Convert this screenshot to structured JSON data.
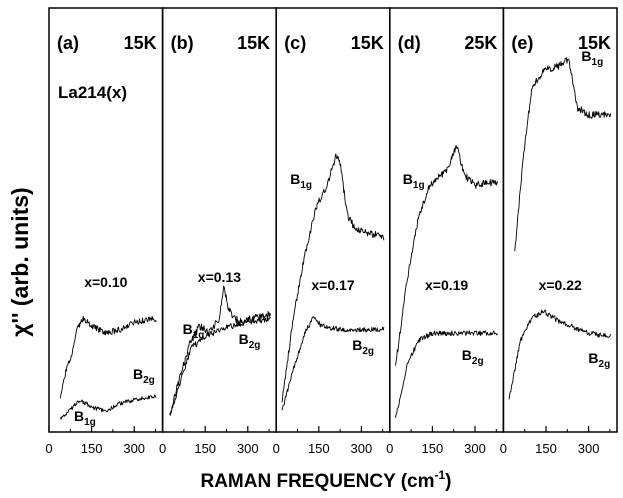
{
  "chart_data": {
    "type": "line",
    "ylabel": "χ'' (arb. units)",
    "xlabel": "RAMAN FREQUENCY (cm",
    "xlabel_sup": "-1",
    "xlabel_end": ")",
    "xlim": [
      0,
      400
    ],
    "xticks": [
      "0",
      "150",
      "300"
    ],
    "sample_label": "La214(x)",
    "panels": [
      {
        "id": "a",
        "letter": "(a)",
        "temp": "15K",
        "doping": "x=0.10",
        "series": [
          {
            "name": "B2g",
            "label_main": "B",
            "label_sub": "2g",
            "noise": 6,
            "points": [
              [
                40,
                0.06
              ],
              [
                60,
                0.14
              ],
              [
                80,
                0.18
              ],
              [
                100,
                0.25
              ],
              [
                120,
                0.28
              ],
              [
                150,
                0.26
              ],
              [
                200,
                0.24
              ],
              [
                250,
                0.25
              ],
              [
                300,
                0.27
              ],
              [
                380,
                0.28
              ]
            ]
          },
          {
            "name": "B1g",
            "label_main": "B",
            "label_sub": "1g",
            "noise": 4,
            "points": [
              [
                40,
                0.01
              ],
              [
                70,
                0.03
              ],
              [
                110,
                0.06
              ],
              [
                150,
                0.04
              ],
              [
                200,
                0.03
              ],
              [
                250,
                0.05
              ],
              [
                300,
                0.06
              ],
              [
                380,
                0.07
              ]
            ]
          }
        ]
      },
      {
        "id": "b",
        "letter": "(b)",
        "temp": "15K",
        "doping": "x=0.13",
        "series": [
          {
            "name": "B1g",
            "label_main": "B",
            "label_sub": "1g",
            "noise": 8,
            "points": [
              [
                25,
                0.02
              ],
              [
                60,
                0.12
              ],
              [
                100,
                0.22
              ],
              [
                130,
                0.26
              ],
              [
                160,
                0.24
              ],
              [
                200,
                0.28
              ],
              [
                215,
                0.37
              ],
              [
                235,
                0.3
              ],
              [
                270,
                0.27
              ],
              [
                320,
                0.28
              ],
              [
                380,
                0.29
              ]
            ]
          },
          {
            "name": "B2g",
            "label_main": "B",
            "label_sub": "2g",
            "noise": 6,
            "points": [
              [
                25,
                0.02
              ],
              [
                60,
                0.1
              ],
              [
                100,
                0.2
              ],
              [
                150,
                0.23
              ],
              [
                200,
                0.25
              ],
              [
                250,
                0.26
              ],
              [
                300,
                0.27
              ],
              [
                380,
                0.28
              ]
            ]
          }
        ]
      },
      {
        "id": "c",
        "letter": "(c)",
        "temp": "15K",
        "doping": "x=0.17",
        "series": [
          {
            "name": "B1g",
            "label_main": "B",
            "label_sub": "1g",
            "noise": 7,
            "points": [
              [
                20,
                0.05
              ],
              [
                60,
                0.28
              ],
              [
                100,
                0.45
              ],
              [
                140,
                0.58
              ],
              [
                180,
                0.64
              ],
              [
                210,
                0.72
              ],
              [
                225,
                0.7
              ],
              [
                250,
                0.56
              ],
              [
                280,
                0.52
              ],
              [
                330,
                0.51
              ],
              [
                380,
                0.5
              ]
            ]
          },
          {
            "name": "B2g",
            "label_main": "B",
            "label_sub": "2g",
            "noise": 5,
            "points": [
              [
                20,
                0.03
              ],
              [
                60,
                0.14
              ],
              [
                100,
                0.24
              ],
              [
                130,
                0.28
              ],
              [
                160,
                0.26
              ],
              [
                220,
                0.25
              ],
              [
                300,
                0.25
              ],
              [
                380,
                0.25
              ]
            ]
          }
        ]
      },
      {
        "id": "d",
        "letter": "(d)",
        "temp": "25K",
        "doping": "x=0.19",
        "series": [
          {
            "name": "B1g",
            "label_main": "B",
            "label_sub": "1g",
            "noise": 7,
            "points": [
              [
                20,
                0.15
              ],
              [
                60,
                0.38
              ],
              [
                100,
                0.55
              ],
              [
                140,
                0.64
              ],
              [
                200,
                0.68
              ],
              [
                235,
                0.75
              ],
              [
                260,
                0.67
              ],
              [
                300,
                0.64
              ],
              [
                380,
                0.65
              ]
            ]
          },
          {
            "name": "B2g",
            "label_main": "B",
            "label_sub": "2g",
            "noise": 5,
            "points": [
              [
                20,
                0.01
              ],
              [
                60,
                0.15
              ],
              [
                100,
                0.22
              ],
              [
                150,
                0.24
              ],
              [
                220,
                0.24
              ],
              [
                300,
                0.24
              ],
              [
                380,
                0.24
              ]
            ]
          }
        ]
      },
      {
        "id": "e",
        "letter": "(e)",
        "temp": "15K",
        "doping": "x=0.22",
        "series": [
          {
            "name": "B1g",
            "label_main": "B",
            "label_sub": "1g",
            "noise": 7,
            "points": [
              [
                40,
                0.46
              ],
              [
                70,
                0.72
              ],
              [
                100,
                0.9
              ],
              [
                140,
                0.95
              ],
              [
                190,
                0.96
              ],
              [
                230,
                0.98
              ],
              [
                260,
                0.85
              ],
              [
                300,
                0.83
              ],
              [
                380,
                0.83
              ]
            ]
          },
          {
            "name": "B2g",
            "label_main": "B",
            "label_sub": "2g",
            "noise": 5,
            "points": [
              [
                20,
                0.06
              ],
              [
                60,
                0.22
              ],
              [
                100,
                0.28
              ],
              [
                140,
                0.3
              ],
              [
                200,
                0.27
              ],
              [
                300,
                0.24
              ],
              [
                380,
                0.23
              ]
            ]
          }
        ]
      }
    ]
  }
}
